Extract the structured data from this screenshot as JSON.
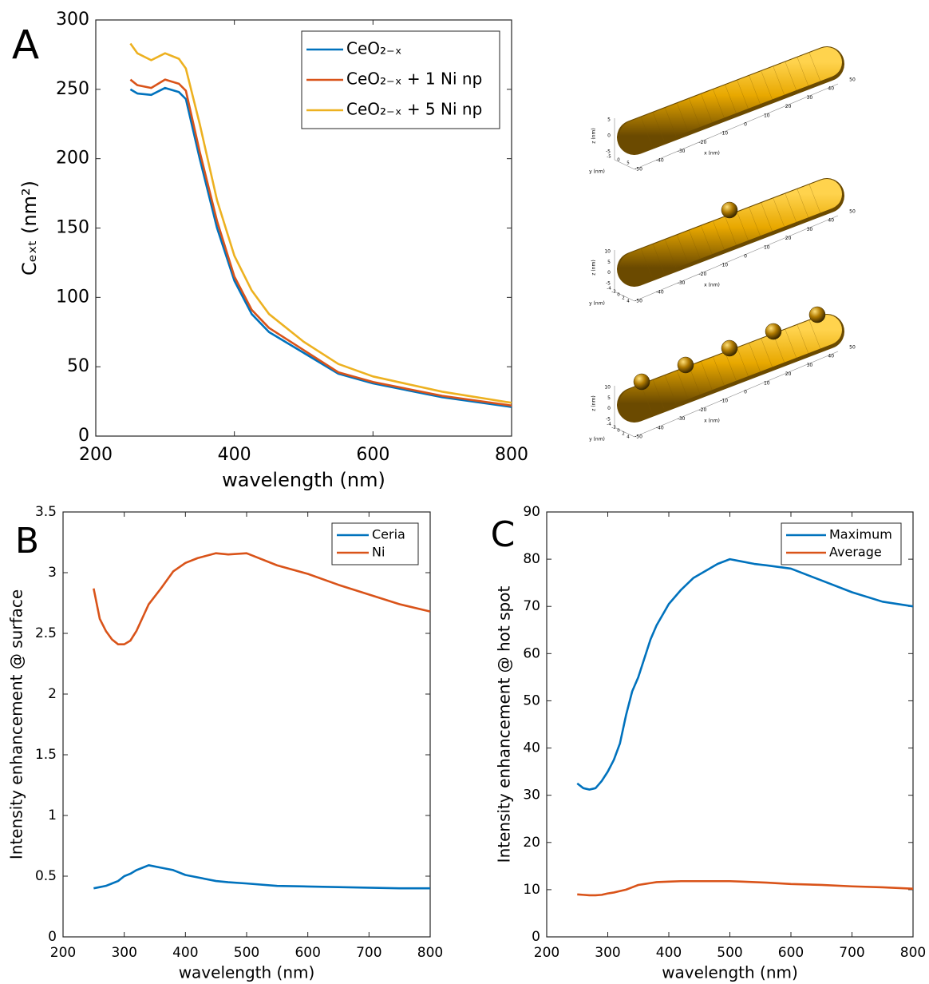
{
  "chart_data": [
    {
      "type": "line",
      "panel_label": "A",
      "xlabel": "wavelength (nm)",
      "ylabel": "Cₑₓₜ (nm²)",
      "x": [
        250,
        260,
        280,
        300,
        320,
        330,
        350,
        375,
        400,
        425,
        450,
        500,
        550,
        600,
        700,
        800
      ],
      "xlim": [
        200,
        800
      ],
      "xticks": [
        200,
        400,
        600,
        800
      ],
      "ylim": [
        0,
        300
      ],
      "yticks": [
        0,
        50,
        100,
        150,
        200,
        250,
        300
      ],
      "legend": "upper right",
      "series": [
        {
          "name": "CeO₂₋ₓ",
          "color": "#0072BD",
          "values": [
            250,
            247,
            246,
            251,
            248,
            243,
            200,
            150,
            112,
            88,
            75,
            60,
            45,
            38,
            28,
            21
          ]
        },
        {
          "name": "CeO₂₋ₓ + 1 Ni np",
          "color": "#D95319",
          "values": [
            257,
            253,
            251,
            257,
            254,
            249,
            205,
            155,
            115,
            91,
            78,
            62,
            46,
            39,
            29,
            22
          ]
        },
        {
          "name": "CeO₂₋ₓ + 5 Ni np",
          "color": "#EDB120",
          "values": [
            283,
            276,
            271,
            276,
            272,
            265,
            225,
            170,
            130,
            105,
            88,
            68,
            52,
            43,
            32,
            24
          ]
        }
      ]
    },
    {
      "type": "line",
      "panel_label": "B",
      "xlabel": "wavelength (nm)",
      "ylabel": "Intensity enhancement @ surface",
      "x": [
        250,
        260,
        270,
        280,
        290,
        300,
        310,
        320,
        330,
        340,
        360,
        380,
        400,
        420,
        450,
        470,
        500,
        550,
        600,
        650,
        700,
        750,
        800
      ],
      "xlim": [
        200,
        800
      ],
      "xticks": [
        200,
        300,
        400,
        500,
        600,
        700,
        800
      ],
      "ylim": [
        0,
        3.5
      ],
      "yticks": [
        0,
        0.5,
        1,
        1.5,
        2,
        2.5,
        3,
        3.5
      ],
      "legend": "upper right",
      "series": [
        {
          "name": "Ceria",
          "color": "#0072BD",
          "values": [
            0.4,
            0.41,
            0.42,
            0.44,
            0.46,
            0.5,
            0.52,
            0.55,
            0.57,
            0.59,
            0.57,
            0.55,
            0.51,
            0.49,
            0.46,
            0.45,
            0.44,
            0.42,
            0.415,
            0.41,
            0.405,
            0.4,
            0.4
          ]
        },
        {
          "name": "Ni",
          "color": "#D95319",
          "values": [
            2.87,
            2.62,
            2.52,
            2.45,
            2.41,
            2.41,
            2.44,
            2.52,
            2.63,
            2.74,
            2.87,
            3.01,
            3.08,
            3.12,
            3.16,
            3.15,
            3.16,
            3.06,
            2.99,
            2.9,
            2.82,
            2.74,
            2.68
          ]
        }
      ]
    },
    {
      "type": "line",
      "panel_label": "C",
      "xlabel": "wavelength (nm)",
      "ylabel": "Intensity enhancement @ hot spot",
      "x": [
        250,
        260,
        270,
        280,
        290,
        300,
        310,
        320,
        330,
        340,
        350,
        360,
        370,
        380,
        400,
        420,
        440,
        460,
        480,
        500,
        520,
        540,
        560,
        600,
        650,
        700,
        750,
        800
      ],
      "xlim": [
        200,
        800
      ],
      "xticks": [
        200,
        300,
        400,
        500,
        600,
        700,
        800
      ],
      "ylim": [
        0,
        90
      ],
      "yticks": [
        0,
        10,
        20,
        30,
        40,
        50,
        60,
        70,
        80,
        90
      ],
      "legend": "upper right",
      "series": [
        {
          "name": "Maximum",
          "color": "#0072BD",
          "values": [
            32.5,
            31.5,
            31.2,
            31.5,
            33,
            35,
            37.5,
            41,
            47,
            52,
            55,
            59,
            63,
            66,
            70.5,
            73.5,
            76,
            77.5,
            79,
            80,
            79.5,
            79,
            78.7,
            78,
            75.5,
            73,
            71,
            70
          ]
        },
        {
          "name": "Average",
          "color": "#D95319",
          "values": [
            9,
            8.9,
            8.8,
            8.8,
            8.9,
            9.2,
            9.4,
            9.7,
            10,
            10.5,
            11,
            11.2,
            11.4,
            11.6,
            11.7,
            11.8,
            11.8,
            11.8,
            11.8,
            11.8,
            11.7,
            11.6,
            11.5,
            11.2,
            11,
            10.7,
            10.5,
            10.2
          ]
        }
      ]
    }
  ],
  "renderings": [
    {
      "x_label": "x (nm)",
      "y_label": "y (nm)",
      "z_label": "z (nm)",
      "x_ticks": [
        -50,
        -40,
        -30,
        -20,
        -10,
        0,
        10,
        20,
        30,
        40,
        50
      ],
      "y_ticks": [
        -5,
        0,
        5
      ],
      "z_ticks": [
        -5,
        0,
        5
      ]
    },
    {
      "x_label": "x (nm)",
      "y_label": "y (nm)",
      "z_label": "z (nm)",
      "x_ticks": [
        -50,
        -40,
        -30,
        -20,
        -10,
        0,
        10,
        20,
        30,
        40,
        50
      ],
      "y_ticks": [
        -4,
        -2,
        0,
        2,
        4
      ],
      "z_ticks": [
        -5,
        0,
        5,
        10
      ]
    },
    {
      "x_label": "x (nm)",
      "y_label": "y (nm)",
      "z_label": "z (nm)",
      "x_ticks": [
        -50,
        -40,
        -30,
        -20,
        -10,
        0,
        10,
        20,
        30,
        40,
        50
      ],
      "y_ticks": [
        -4,
        -2,
        0,
        2,
        4
      ],
      "z_ticks": [
        -5,
        0,
        5,
        10
      ]
    }
  ]
}
